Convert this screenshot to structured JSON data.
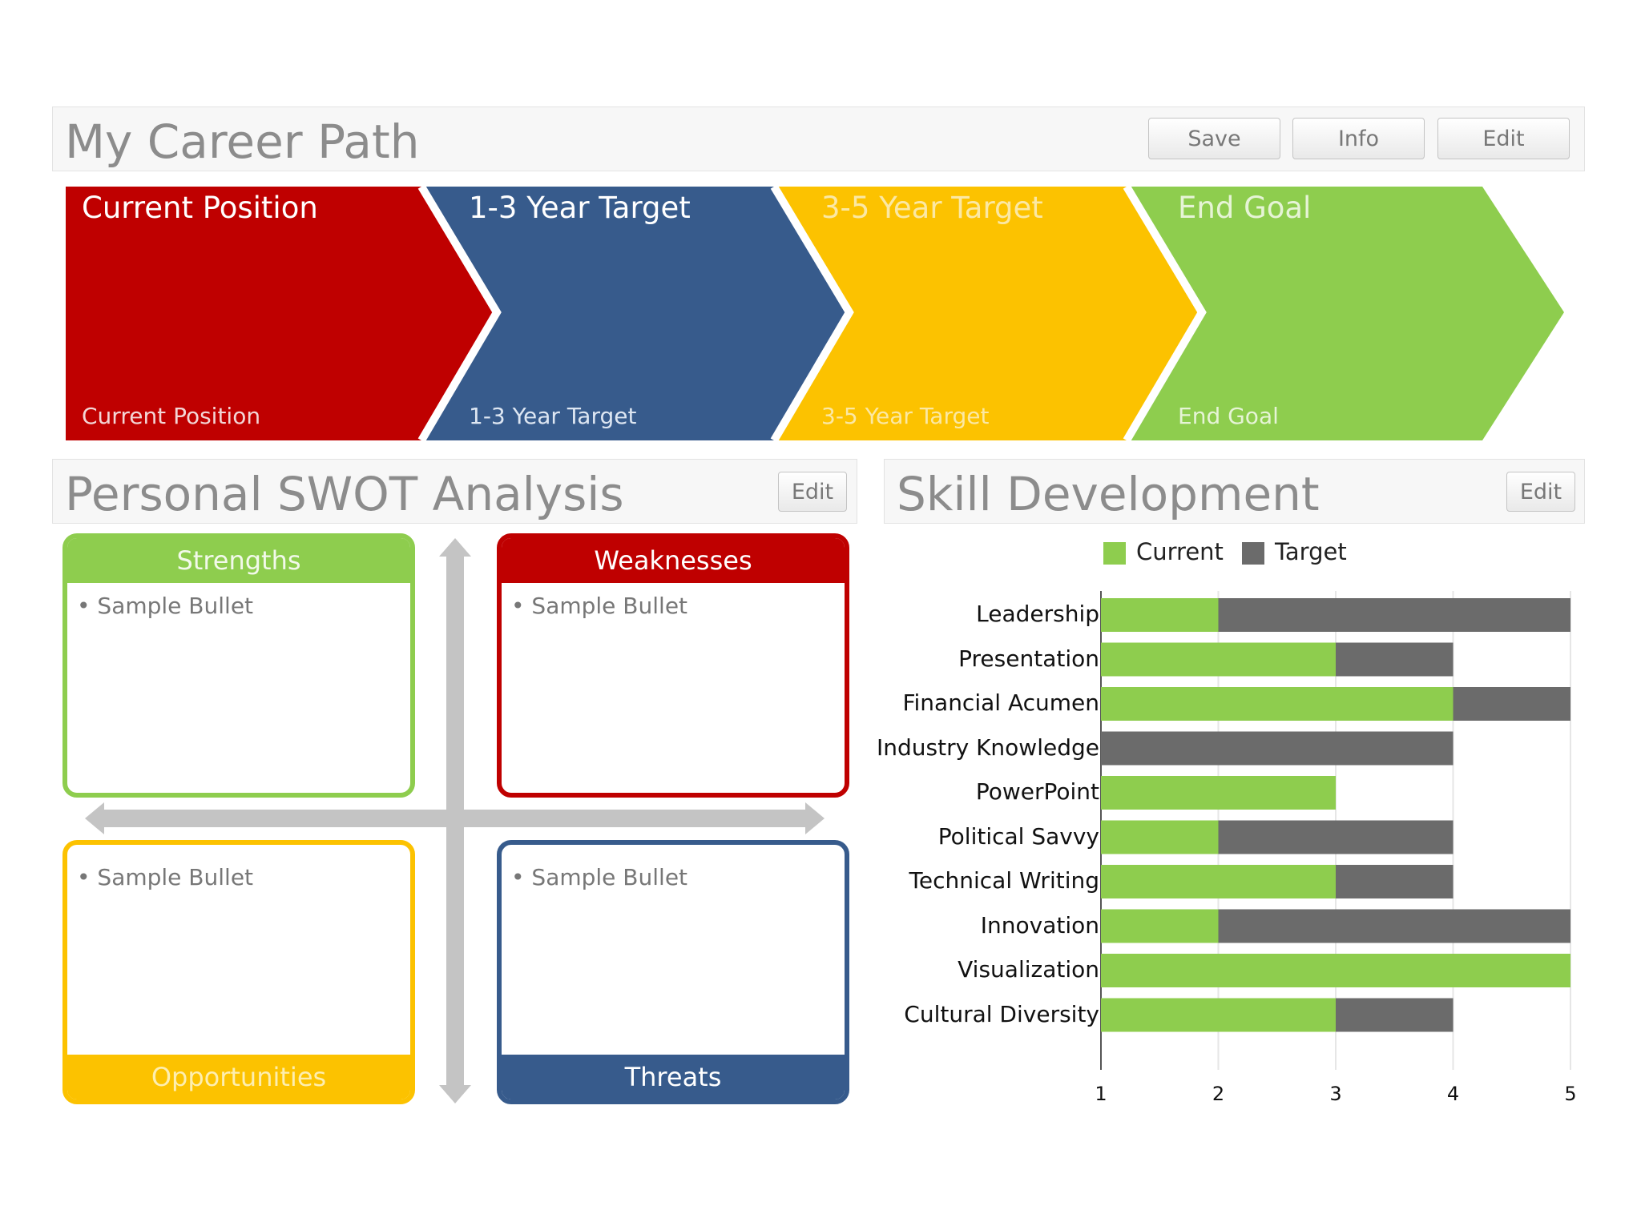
{
  "career_path": {
    "title": "My Career Path",
    "buttons": {
      "save": "Save",
      "info": "Info",
      "edit": "Edit"
    },
    "stages": [
      {
        "title": "Current Position",
        "subtitle": "Current Position",
        "color": "#bf0000"
      },
      {
        "title": "1-3 Year Target",
        "subtitle": "1-3 Year Target",
        "color": "#375b8c"
      },
      {
        "title": "3-5 Year Target",
        "subtitle": "3-5 Year Target",
        "color": "#fcc200"
      },
      {
        "title": "End Goal",
        "subtitle": "End Goal",
        "color": "#8ecd4e"
      }
    ]
  },
  "swot": {
    "title": "Personal SWOT Analysis",
    "edit_label": "Edit",
    "quadrants": {
      "strengths": {
        "label": "Strengths",
        "bullet": "• Sample Bullet",
        "color": "#8ecd4e"
      },
      "weaknesses": {
        "label": "Weaknesses",
        "bullet": "• Sample Bullet",
        "color": "#bf0000"
      },
      "opportunities": {
        "label": "Opportunities",
        "bullet": "• Sample Bullet",
        "color": "#fcc200"
      },
      "threats": {
        "label": "Threats",
        "bullet": "• Sample Bullet",
        "color": "#375b8c"
      }
    }
  },
  "skills": {
    "title": "Skill Development",
    "edit_label": "Edit",
    "chart_data": {
      "type": "bar",
      "orientation": "horizontal",
      "legend_placement": "top",
      "categories": [
        "Leadership",
        "Presentation",
        "Financial Acumen",
        "Industry Knowledge",
        "PowerPoint",
        "Political Savvy",
        "Technical Writing",
        "Innovation",
        "Visualization",
        "Cultural Diversity"
      ],
      "series": [
        {
          "name": "Current",
          "color": "#8ecd4e",
          "values": [
            2,
            3,
            4,
            1,
            3,
            2,
            3,
            2,
            5,
            3
          ]
        },
        {
          "name": "Target",
          "color": "#6b6b6b",
          "values": [
            5,
            4,
            5,
            4,
            3,
            4,
            4,
            5,
            5,
            4
          ]
        }
      ],
      "xlim": [
        1,
        5
      ],
      "xticks": [
        "1",
        "2",
        "3",
        "4",
        "5"
      ],
      "grid": true
    }
  }
}
